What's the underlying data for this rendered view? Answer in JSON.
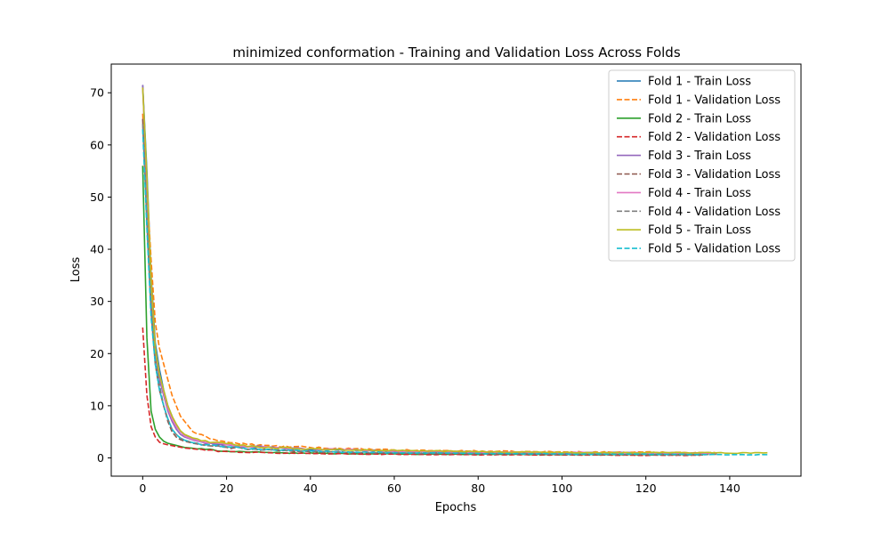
{
  "chart_data": {
    "type": "line",
    "title": "minimized conformation - Training and Validation Loss Across Folds",
    "xlabel": "Epochs",
    "ylabel": "Loss",
    "xlim": [
      -7.5,
      157
    ],
    "ylim": [
      -3.5,
      75.5
    ],
    "xticks": [
      0,
      20,
      40,
      60,
      80,
      100,
      120,
      140
    ],
    "yticks": [
      0,
      10,
      20,
      30,
      40,
      50,
      60,
      70
    ],
    "grid": false,
    "legend_position": "top-right",
    "series": [
      {
        "name": "Fold 1 - Train Loss",
        "color": "#1f77b4",
        "dash": "solid",
        "last_epoch": 137,
        "points": [
          [
            0,
            71.5
          ],
          [
            1,
            55
          ],
          [
            2,
            35
          ],
          [
            3,
            22
          ],
          [
            4,
            17
          ],
          [
            5,
            13
          ],
          [
            6,
            10
          ],
          [
            7,
            8
          ],
          [
            8,
            6
          ],
          [
            9,
            5
          ],
          [
            10,
            4.3
          ],
          [
            12,
            3.6
          ],
          [
            15,
            3.0
          ],
          [
            20,
            2.6
          ],
          [
            25,
            2.2
          ],
          [
            30,
            2.0
          ],
          [
            40,
            1.7
          ],
          [
            50,
            1.5
          ],
          [
            60,
            1.3
          ],
          [
            70,
            1.2
          ],
          [
            80,
            1.1
          ],
          [
            90,
            1.05
          ],
          [
            100,
            1.0
          ],
          [
            110,
            1.0
          ],
          [
            120,
            0.95
          ],
          [
            130,
            0.95
          ],
          [
            137,
            0.9
          ]
        ]
      },
      {
        "name": "Fold 1 - Validation Loss",
        "color": "#ff7f0e",
        "dash": "dashed",
        "last_epoch": 137,
        "points": [
          [
            0,
            66
          ],
          [
            1,
            52
          ],
          [
            2,
            38
          ],
          [
            3,
            26
          ],
          [
            4,
            21
          ],
          [
            5,
            18
          ],
          [
            6,
            15
          ],
          [
            7,
            12
          ],
          [
            8,
            10
          ],
          [
            9,
            8
          ],
          [
            10,
            7
          ],
          [
            12,
            5
          ],
          [
            15,
            4
          ],
          [
            20,
            3
          ],
          [
            25,
            2.6
          ],
          [
            30,
            2.3
          ],
          [
            40,
            2.0
          ],
          [
            50,
            1.7
          ],
          [
            60,
            1.5
          ],
          [
            70,
            1.4
          ],
          [
            80,
            1.3
          ],
          [
            90,
            1.2
          ],
          [
            100,
            1.15
          ],
          [
            110,
            1.1
          ],
          [
            120,
            1.1
          ],
          [
            130,
            1.05
          ],
          [
            137,
            1.0
          ]
        ]
      },
      {
        "name": "Fold 2 - Train Loss",
        "color": "#2ca02c",
        "dash": "solid",
        "last_epoch": 133,
        "points": [
          [
            0,
            56
          ],
          [
            1,
            23
          ],
          [
            2,
            9
          ],
          [
            3,
            5.5
          ],
          [
            4,
            4
          ],
          [
            5,
            3.2
          ],
          [
            6,
            2.8
          ],
          [
            8,
            2.4
          ],
          [
            10,
            2.0
          ],
          [
            15,
            1.6
          ],
          [
            20,
            1.3
          ],
          [
            30,
            1.0
          ],
          [
            40,
            0.9
          ],
          [
            50,
            0.8
          ],
          [
            60,
            0.75
          ],
          [
            70,
            0.7
          ],
          [
            80,
            0.7
          ],
          [
            90,
            0.65
          ],
          [
            100,
            0.65
          ],
          [
            110,
            0.6
          ],
          [
            120,
            0.6
          ],
          [
            133,
            0.6
          ]
        ]
      },
      {
        "name": "Fold 2 - Validation Loss",
        "color": "#d62728",
        "dash": "dashed",
        "last_epoch": 133,
        "points": [
          [
            0,
            25
          ],
          [
            1,
            12
          ],
          [
            2,
            6
          ],
          [
            3,
            4
          ],
          [
            4,
            3
          ],
          [
            5,
            2.7
          ],
          [
            6,
            2.5
          ],
          [
            8,
            2.2
          ],
          [
            10,
            1.9
          ],
          [
            15,
            1.5
          ],
          [
            20,
            1.2
          ],
          [
            30,
            0.95
          ],
          [
            40,
            0.85
          ],
          [
            50,
            0.75
          ],
          [
            60,
            0.7
          ],
          [
            70,
            0.65
          ],
          [
            80,
            0.6
          ],
          [
            90,
            0.6
          ],
          [
            100,
            0.55
          ],
          [
            110,
            0.55
          ],
          [
            120,
            0.5
          ],
          [
            133,
            0.5
          ]
        ]
      },
      {
        "name": "Fold 3 - Train Loss",
        "color": "#9467bd",
        "dash": "solid",
        "last_epoch": 134,
        "points": [
          [
            0,
            71.5
          ],
          [
            1,
            52
          ],
          [
            2,
            32
          ],
          [
            3,
            20
          ],
          [
            4,
            15
          ],
          [
            5,
            12
          ],
          [
            6,
            9
          ],
          [
            7,
            7
          ],
          [
            8,
            5.5
          ],
          [
            9,
            4.5
          ],
          [
            10,
            4
          ],
          [
            12,
            3.4
          ],
          [
            15,
            2.9
          ],
          [
            20,
            2.5
          ],
          [
            25,
            2.2
          ],
          [
            30,
            2.0
          ],
          [
            40,
            1.7
          ],
          [
            50,
            1.5
          ],
          [
            60,
            1.3
          ],
          [
            70,
            1.2
          ],
          [
            80,
            1.1
          ],
          [
            90,
            1.05
          ],
          [
            100,
            1.0
          ],
          [
            110,
            0.95
          ],
          [
            120,
            0.95
          ],
          [
            134,
            0.9
          ]
        ]
      },
      {
        "name": "Fold 3 - Validation Loss",
        "color": "#8c564b",
        "dash": "dashed",
        "last_epoch": 134,
        "points": [
          [
            0,
            65
          ],
          [
            1,
            45
          ],
          [
            2,
            28
          ],
          [
            3,
            18
          ],
          [
            4,
            13
          ],
          [
            5,
            10
          ],
          [
            6,
            7
          ],
          [
            7,
            5
          ],
          [
            8,
            4
          ],
          [
            9,
            3.5
          ],
          [
            10,
            3.2
          ],
          [
            12,
            2.8
          ],
          [
            15,
            2.4
          ],
          [
            20,
            2.0
          ],
          [
            25,
            1.7
          ],
          [
            30,
            1.5
          ],
          [
            40,
            1.2
          ],
          [
            50,
            1.0
          ],
          [
            60,
            0.9
          ],
          [
            70,
            0.8
          ],
          [
            80,
            0.75
          ],
          [
            90,
            0.7
          ],
          [
            100,
            0.65
          ],
          [
            110,
            0.6
          ],
          [
            120,
            0.6
          ],
          [
            134,
            0.55
          ]
        ]
      },
      {
        "name": "Fold 4 - Train Loss",
        "color": "#e377c2",
        "dash": "solid",
        "last_epoch": 137,
        "points": [
          [
            0,
            71
          ],
          [
            1,
            53
          ],
          [
            2,
            33
          ],
          [
            3,
            21
          ],
          [
            4,
            16
          ],
          [
            5,
            12.5
          ],
          [
            6,
            9.5
          ],
          [
            7,
            7.5
          ],
          [
            8,
            6
          ],
          [
            9,
            5
          ],
          [
            10,
            4.2
          ],
          [
            12,
            3.5
          ],
          [
            15,
            3.0
          ],
          [
            20,
            2.5
          ],
          [
            25,
            2.2
          ],
          [
            30,
            2.0
          ],
          [
            40,
            1.7
          ],
          [
            50,
            1.5
          ],
          [
            60,
            1.3
          ],
          [
            70,
            1.2
          ],
          [
            80,
            1.1
          ],
          [
            90,
            1.05
          ],
          [
            100,
            1.0
          ],
          [
            110,
            1.0
          ],
          [
            120,
            0.95
          ],
          [
            130,
            0.95
          ],
          [
            137,
            0.9
          ]
        ]
      },
      {
        "name": "Fold 4 - Validation Loss",
        "color": "#7f7f7f",
        "dash": "dashed",
        "last_epoch": 137,
        "points": [
          [
            0,
            64
          ],
          [
            1,
            46
          ],
          [
            2,
            29
          ],
          [
            3,
            19
          ],
          [
            4,
            14
          ],
          [
            5,
            10
          ],
          [
            6,
            7.5
          ],
          [
            7,
            5.5
          ],
          [
            8,
            4.5
          ],
          [
            9,
            3.8
          ],
          [
            10,
            3.4
          ],
          [
            12,
            2.9
          ],
          [
            15,
            2.5
          ],
          [
            20,
            2.1
          ],
          [
            25,
            1.8
          ],
          [
            30,
            1.6
          ],
          [
            40,
            1.3
          ],
          [
            50,
            1.1
          ],
          [
            60,
            1.0
          ],
          [
            70,
            0.9
          ],
          [
            80,
            0.85
          ],
          [
            90,
            0.8
          ],
          [
            100,
            0.75
          ],
          [
            110,
            0.7
          ],
          [
            120,
            0.7
          ],
          [
            130,
            0.65
          ],
          [
            137,
            0.65
          ]
        ]
      },
      {
        "name": "Fold 5 - Train Loss",
        "color": "#bcbd22",
        "dash": "solid",
        "last_epoch": 149,
        "points": [
          [
            0,
            71
          ],
          [
            1,
            54
          ],
          [
            2,
            34
          ],
          [
            3,
            21
          ],
          [
            4,
            16
          ],
          [
            5,
            13
          ],
          [
            6,
            10
          ],
          [
            7,
            8
          ],
          [
            8,
            6.5
          ],
          [
            9,
            5.2
          ],
          [
            10,
            4.5
          ],
          [
            12,
            3.8
          ],
          [
            15,
            3.2
          ],
          [
            20,
            2.7
          ],
          [
            25,
            2.3
          ],
          [
            30,
            2.0
          ],
          [
            40,
            1.7
          ],
          [
            50,
            1.5
          ],
          [
            60,
            1.4
          ],
          [
            70,
            1.3
          ],
          [
            80,
            1.2
          ],
          [
            90,
            1.1
          ],
          [
            100,
            1.05
          ],
          [
            110,
            1.0
          ],
          [
            120,
            1.0
          ],
          [
            130,
            1.0
          ],
          [
            140,
            0.95
          ],
          [
            149,
            0.95
          ]
        ]
      },
      {
        "name": "Fold 5 - Validation Loss",
        "color": "#17becf",
        "dash": "dashed",
        "last_epoch": 149,
        "points": [
          [
            0,
            63
          ],
          [
            1,
            44
          ],
          [
            2,
            27
          ],
          [
            3,
            18
          ],
          [
            4,
            13
          ],
          [
            5,
            10
          ],
          [
            6,
            7.5
          ],
          [
            7,
            5.5
          ],
          [
            8,
            4.5
          ],
          [
            9,
            3.8
          ],
          [
            10,
            3.4
          ],
          [
            12,
            2.9
          ],
          [
            15,
            2.5
          ],
          [
            20,
            2.1
          ],
          [
            25,
            1.8
          ],
          [
            30,
            1.6
          ],
          [
            40,
            1.3
          ],
          [
            50,
            1.1
          ],
          [
            60,
            1.0
          ],
          [
            70,
            0.9
          ],
          [
            80,
            0.85
          ],
          [
            90,
            0.8
          ],
          [
            100,
            0.75
          ],
          [
            110,
            0.7
          ],
          [
            120,
            0.7
          ],
          [
            130,
            0.65
          ],
          [
            140,
            0.6
          ],
          [
            149,
            0.6
          ]
        ]
      }
    ]
  }
}
